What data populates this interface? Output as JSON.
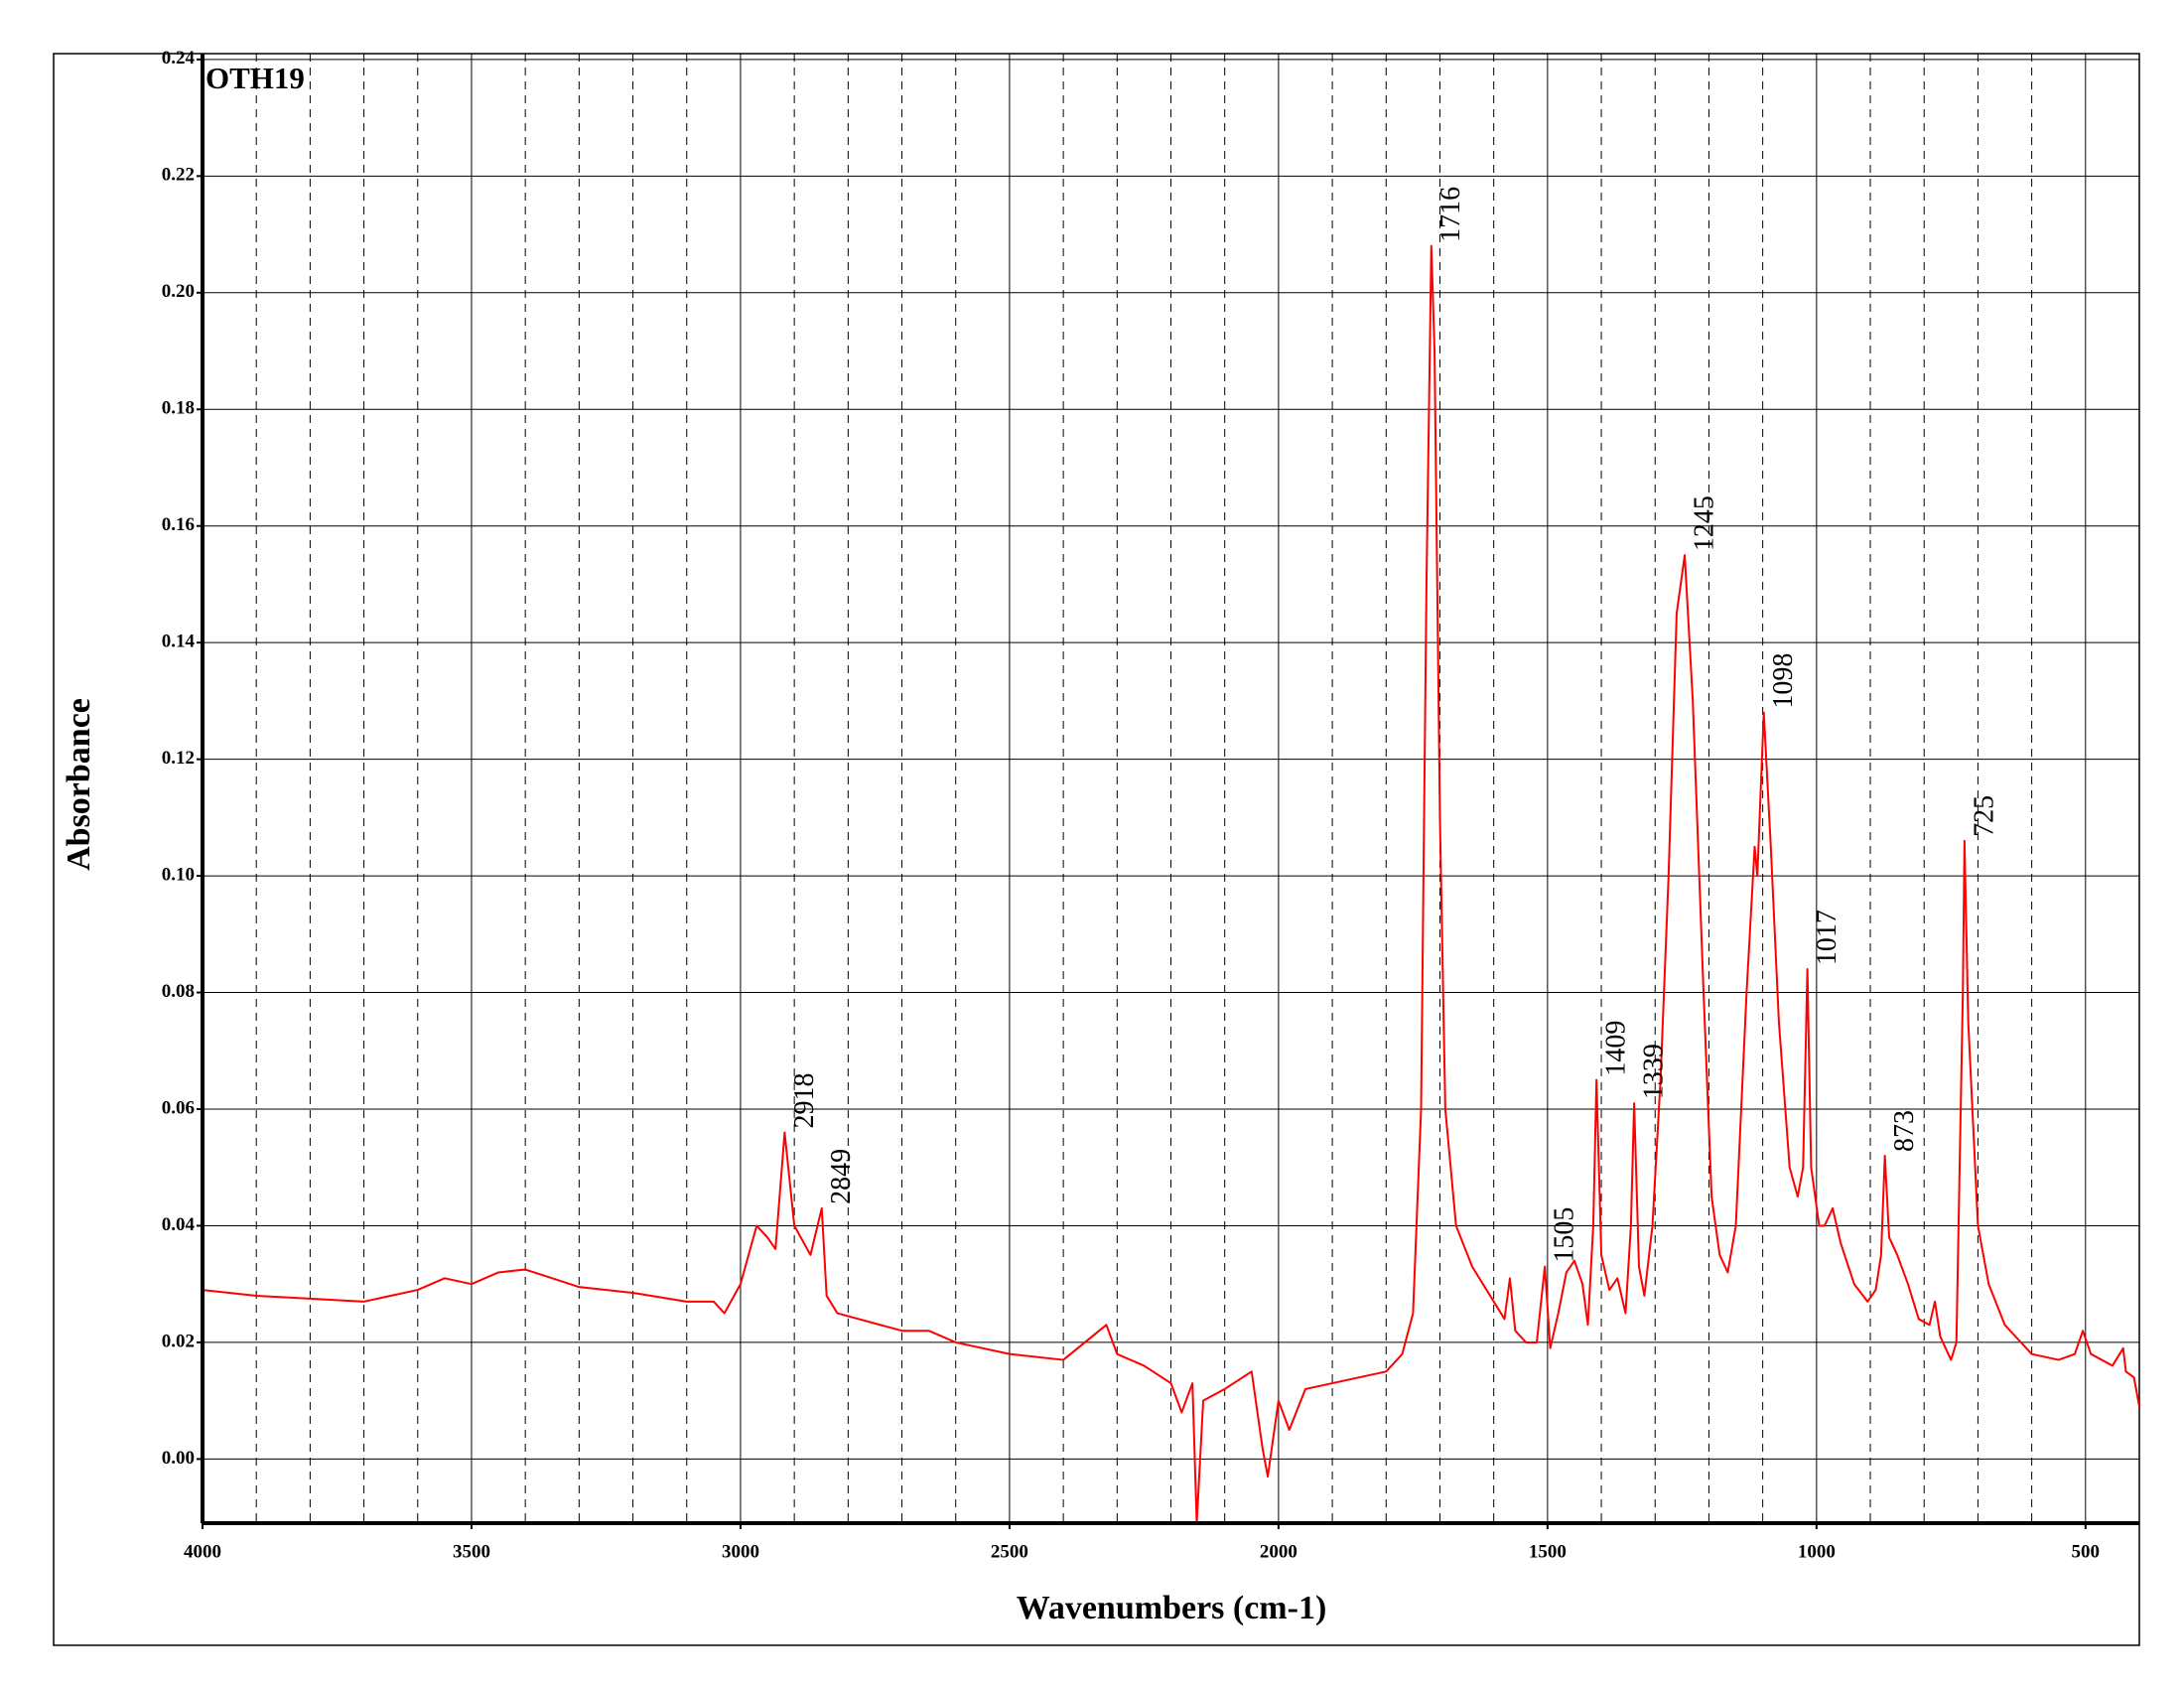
{
  "chart_data": {
    "type": "line",
    "title": "OTH19",
    "xlabel": "Wavenumbers (cm-1)",
    "ylabel": "Absorbance",
    "color": "#ff0000",
    "xlim": [
      4000,
      400
    ],
    "ylim": [
      -0.011,
      0.241
    ],
    "xticks": [
      4000,
      3500,
      3000,
      2500,
      2000,
      1500,
      1000,
      500
    ],
    "xminor_ticks": [
      3900,
      3800,
      3700,
      3600,
      3400,
      3300,
      3200,
      3100,
      2900,
      2800,
      2700,
      2600,
      2400,
      2300,
      2200,
      2100,
      1900,
      1800,
      1700,
      1600,
      1400,
      1300,
      1200,
      1100,
      900,
      800,
      700,
      600
    ],
    "yticks": [
      {
        "value": 0,
        "label": "0.00"
      },
      0.02,
      0.04,
      0.06,
      0.08,
      {
        "value": 0.1,
        "label": "0.10"
      },
      0.12,
      0.14,
      0.16,
      0.18,
      {
        "value": 0.2,
        "label": "0.20"
      },
      0.22,
      0.24
    ],
    "grid": true,
    "x": [
      4000,
      3900,
      3800,
      3700,
      3600,
      3550,
      3500,
      3450,
      3400,
      3350,
      3300,
      3200,
      3100,
      3050,
      3030,
      3000,
      2970,
      2950,
      2935,
      2918,
      2900,
      2870,
      2849,
      2840,
      2820,
      2700,
      2650,
      2600,
      2500,
      2400,
      2320,
      2300,
      2250,
      2200,
      2180,
      2160,
      2152,
      2140,
      2100,
      2050,
      2030,
      2020,
      2000,
      1980,
      1950,
      1900,
      1850,
      1800,
      1770,
      1750,
      1735,
      1725,
      1716,
      1710,
      1700,
      1690,
      1670,
      1640,
      1600,
      1580,
      1570,
      1560,
      1540,
      1520,
      1505,
      1495,
      1480,
      1465,
      1450,
      1435,
      1425,
      1415,
      1409,
      1400,
      1385,
      1370,
      1355,
      1345,
      1339,
      1330,
      1320,
      1305,
      1290,
      1275,
      1260,
      1245,
      1230,
      1210,
      1195,
      1180,
      1165,
      1150,
      1130,
      1115,
      1110,
      1098,
      1085,
      1070,
      1050,
      1035,
      1025,
      1017,
      1010,
      995,
      985,
      970,
      955,
      930,
      905,
      890,
      880,
      873,
      865,
      850,
      830,
      810,
      790,
      780,
      770,
      750,
      740,
      728,
      725,
      718,
      700,
      680,
      650,
      620,
      600,
      550,
      520,
      505,
      490,
      470,
      450,
      430,
      425,
      410,
      400
    ],
    "values": [
      0.029,
      0.028,
      0.0275,
      0.027,
      0.029,
      0.031,
      0.03,
      0.032,
      0.0325,
      0.031,
      0.0295,
      0.0285,
      0.027,
      0.027,
      0.025,
      0.03,
      0.04,
      0.038,
      0.036,
      0.056,
      0.04,
      0.035,
      0.043,
      0.028,
      0.025,
      0.022,
      0.022,
      0.02,
      0.018,
      0.017,
      0.023,
      0.018,
      0.016,
      0.013,
      0.008,
      0.013,
      -0.011,
      0.01,
      0.012,
      0.015,
      0.002,
      -0.003,
      0.01,
      0.005,
      0.012,
      0.013,
      0.014,
      0.015,
      0.018,
      0.025,
      0.06,
      0.15,
      0.208,
      0.19,
      0.11,
      0.06,
      0.04,
      0.033,
      0.027,
      0.024,
      0.031,
      0.022,
      0.02,
      0.02,
      0.033,
      0.019,
      0.025,
      0.032,
      0.034,
      0.03,
      0.023,
      0.04,
      0.065,
      0.035,
      0.029,
      0.031,
      0.025,
      0.04,
      0.061,
      0.033,
      0.028,
      0.04,
      0.065,
      0.1,
      0.145,
      0.155,
      0.13,
      0.08,
      0.045,
      0.035,
      0.032,
      0.04,
      0.08,
      0.105,
      0.1,
      0.128,
      0.105,
      0.075,
      0.05,
      0.045,
      0.05,
      0.084,
      0.05,
      0.04,
      0.04,
      0.043,
      0.037,
      0.03,
      0.027,
      0.029,
      0.035,
      0.052,
      0.038,
      0.035,
      0.03,
      0.024,
      0.023,
      0.027,
      0.021,
      0.017,
      0.02,
      0.08,
      0.106,
      0.075,
      0.04,
      0.03,
      0.023,
      0.02,
      0.018,
      0.017,
      0.018,
      0.022,
      0.018,
      0.017,
      0.016,
      0.019,
      0.015,
      0.014,
      0.009
    ],
    "peaks": [
      {
        "x": 2918,
        "y": 0.056
      },
      {
        "x": 2849,
        "y": 0.043
      },
      {
        "x": 1716,
        "y": 0.208
      },
      {
        "x": 1505,
        "y": 0.033
      },
      {
        "x": 1409,
        "y": 0.065
      },
      {
        "x": 1339,
        "y": 0.061
      },
      {
        "x": 1245,
        "y": 0.155
      },
      {
        "x": 1098,
        "y": 0.128
      },
      {
        "x": 1017,
        "y": 0.084
      },
      {
        "x": 873,
        "y": 0.052
      },
      {
        "x": 725,
        "y": 0.106
      }
    ]
  }
}
